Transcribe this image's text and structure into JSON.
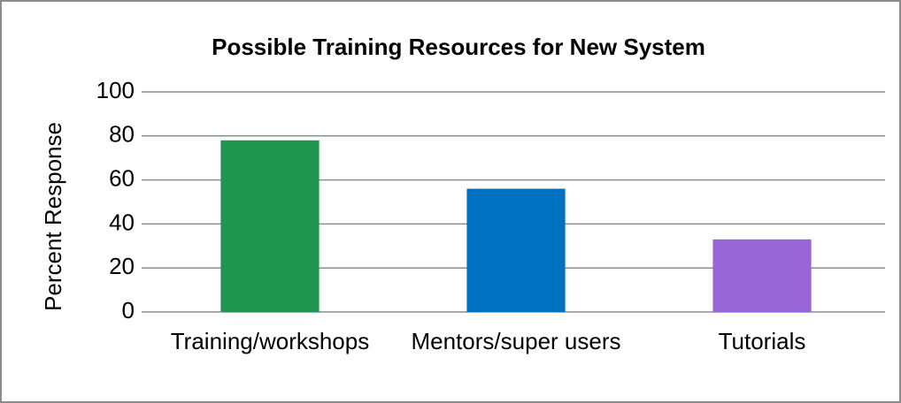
{
  "chart_data": {
    "type": "bar",
    "title": "Possible Training Resources for New System",
    "y_label": "Percent Response",
    "categories": [
      "Training/workshops",
      "Mentors/super users",
      "Tutorials"
    ],
    "values": [
      78,
      56,
      33
    ],
    "colors": [
      "#1e9650",
      "#0070c0",
      "#9966d6"
    ],
    "ylim": [
      0,
      100
    ],
    "yticks": [
      0,
      20,
      40,
      60,
      80,
      100
    ],
    "grid": true
  }
}
